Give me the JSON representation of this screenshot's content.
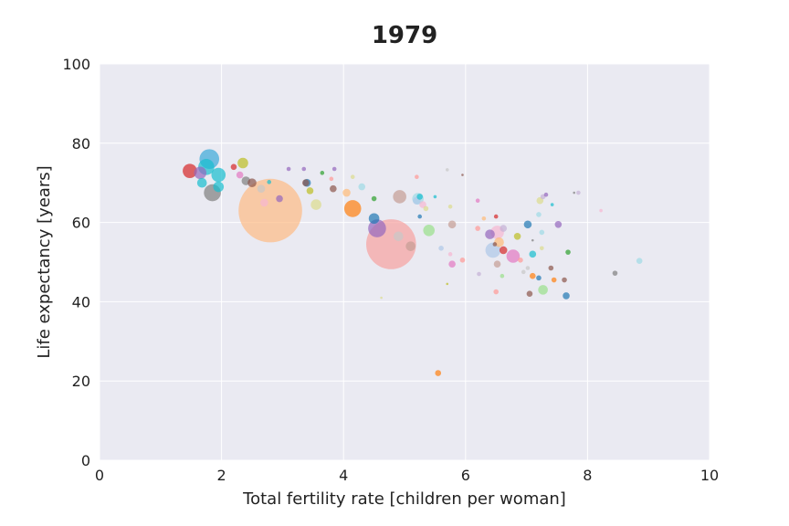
{
  "chart_data": {
    "type": "scatter",
    "title": "1979",
    "xlabel": "Total fertility rate [children per woman]",
    "ylabel": "Life expectancy [years]",
    "xlim": [
      0,
      10
    ],
    "ylim": [
      0,
      100
    ],
    "xticks": [
      "0",
      "2",
      "4",
      "6",
      "8",
      "10"
    ],
    "yticks": [
      "0",
      "20",
      "40",
      "60",
      "80",
      "100"
    ],
    "grid": true,
    "background": "#EAEAF2",
    "grid_color": "#FFFFFF",
    "points": [
      {
        "x": 2.8,
        "y": 63,
        "size": 68,
        "color": "#FDBB84"
      },
      {
        "x": 4.78,
        "y": 54.5,
        "size": 53,
        "color": "#F7A1A0"
      },
      {
        "x": 1.8,
        "y": 76,
        "size": 20,
        "color": "#3AA8D8"
      },
      {
        "x": 1.75,
        "y": 74,
        "size": 16,
        "color": "#17BECF"
      },
      {
        "x": 1.48,
        "y": 73,
        "size": 14,
        "color": "#D62728"
      },
      {
        "x": 1.65,
        "y": 72.5,
        "size": 12,
        "color": "#9467BD"
      },
      {
        "x": 1.95,
        "y": 72,
        "size": 14,
        "color": "#17BECF"
      },
      {
        "x": 1.68,
        "y": 70,
        "size": 9,
        "color": "#17BECF"
      },
      {
        "x": 1.85,
        "y": 67.5,
        "size": 17,
        "color": "#7F7F7F"
      },
      {
        "x": 1.95,
        "y": 69,
        "size": 10,
        "color": "#17BECF"
      },
      {
        "x": 2.35,
        "y": 75,
        "size": 10,
        "color": "#BCBD22"
      },
      {
        "x": 2.4,
        "y": 70.5,
        "size": 8,
        "color": "#7F7F7F"
      },
      {
        "x": 2.5,
        "y": 70,
        "size": 8,
        "color": "#8C564B"
      },
      {
        "x": 2.3,
        "y": 72,
        "size": 6,
        "color": "#E377C2"
      },
      {
        "x": 2.2,
        "y": 74,
        "size": 5,
        "color": "#D62728"
      },
      {
        "x": 2.65,
        "y": 68.5,
        "size": 7,
        "color": "#C7C7C7"
      },
      {
        "x": 2.7,
        "y": 65,
        "size": 7,
        "color": "#F7B6D2"
      },
      {
        "x": 2.95,
        "y": 66,
        "size": 6,
        "color": "#9467BD"
      },
      {
        "x": 2.78,
        "y": 70.2,
        "size": 3,
        "color": "#17BECF"
      },
      {
        "x": 3.4,
        "y": 70,
        "size": 7,
        "color": "#1F77B4"
      },
      {
        "x": 3.38,
        "y": 70,
        "size": 6,
        "color": "#8C564B"
      },
      {
        "x": 3.45,
        "y": 68,
        "size": 6,
        "color": "#BCBD22"
      },
      {
        "x": 3.55,
        "y": 64.5,
        "size": 10,
        "color": "#DBDB8D"
      },
      {
        "x": 3.1,
        "y": 73.5,
        "size": 3,
        "color": "#9467BD"
      },
      {
        "x": 3.35,
        "y": 73.5,
        "size": 3,
        "color": "#9467BD"
      },
      {
        "x": 3.65,
        "y": 72.5,
        "size": 3,
        "color": "#2CA02C"
      },
      {
        "x": 3.85,
        "y": 73.5,
        "size": 3,
        "color": "#9467BD"
      },
      {
        "x": 3.83,
        "y": 68.5,
        "size": 6,
        "color": "#8C564B"
      },
      {
        "x": 3.8,
        "y": 71,
        "size": 3,
        "color": "#FF9896"
      },
      {
        "x": 4.15,
        "y": 63.5,
        "size": 17,
        "color": "#FF7F0E"
      },
      {
        "x": 4.05,
        "y": 67.5,
        "size": 7,
        "color": "#FFBB78"
      },
      {
        "x": 4.15,
        "y": 71.5,
        "size": 3,
        "color": "#DBDB8D"
      },
      {
        "x": 4.3,
        "y": 69,
        "size": 6,
        "color": "#9EDAE5"
      },
      {
        "x": 4.5,
        "y": 66,
        "size": 4,
        "color": "#2CA02C"
      },
      {
        "x": 4.55,
        "y": 58.5,
        "size": 18,
        "color": "#9467BD"
      },
      {
        "x": 4.5,
        "y": 61,
        "size": 10,
        "color": "#1F77B4"
      },
      {
        "x": 4.9,
        "y": 56.5,
        "size": 9,
        "color": "#C7C7C7"
      },
      {
        "x": 4.92,
        "y": 66.5,
        "size": 13,
        "color": "#C49C94"
      },
      {
        "x": 5.1,
        "y": 54,
        "size": 9,
        "color": "#C49C94"
      },
      {
        "x": 5.22,
        "y": 66,
        "size": 11,
        "color": "#9EDAE5"
      },
      {
        "x": 5.2,
        "y": 65.5,
        "size": 7,
        "color": "#AEC7E8"
      },
      {
        "x": 5.25,
        "y": 66.5,
        "size": 5,
        "color": "#17BECF"
      },
      {
        "x": 5.3,
        "y": 64.5,
        "size": 6,
        "color": "#F7B6D2"
      },
      {
        "x": 5.25,
        "y": 61.5,
        "size": 3,
        "color": "#1F77B4"
      },
      {
        "x": 5.4,
        "y": 58,
        "size": 11,
        "color": "#98DF8A"
      },
      {
        "x": 5.35,
        "y": 63.5,
        "size": 4,
        "color": "#DBDB8D"
      },
      {
        "x": 5.5,
        "y": 66.5,
        "size": 2,
        "color": "#17BECF"
      },
      {
        "x": 5.2,
        "y": 71.5,
        "size": 3,
        "color": "#FF9896"
      },
      {
        "x": 5.6,
        "y": 53.5,
        "size": 4,
        "color": "#AEC7E8"
      },
      {
        "x": 5.78,
        "y": 59.5,
        "size": 7,
        "color": "#C49C94"
      },
      {
        "x": 5.75,
        "y": 52,
        "size": 3,
        "color": "#F7B6D2"
      },
      {
        "x": 5.78,
        "y": 49.5,
        "size": 6,
        "color": "#E377C2"
      },
      {
        "x": 5.75,
        "y": 64,
        "size": 3,
        "color": "#DBDB8D"
      },
      {
        "x": 5.7,
        "y": 73.3,
        "size": 2,
        "color": "#C7C7C7"
      },
      {
        "x": 5.95,
        "y": 72,
        "size": 1,
        "color": "#8C564B"
      },
      {
        "x": 5.95,
        "y": 50.5,
        "size": 4,
        "color": "#FF9896"
      },
      {
        "x": 5.55,
        "y": 22,
        "size": 5,
        "color": "#FF7F0E"
      },
      {
        "x": 5.7,
        "y": 44.5,
        "size": 1,
        "color": "#BCBD22"
      },
      {
        "x": 4.62,
        "y": 41,
        "size": 1,
        "color": "#DBDB8D"
      },
      {
        "x": 6.2,
        "y": 65.5,
        "size": 3,
        "color": "#E377C2"
      },
      {
        "x": 6.2,
        "y": 58.5,
        "size": 4,
        "color": "#FF9896"
      },
      {
        "x": 6.3,
        "y": 61,
        "size": 3,
        "color": "#FFBB78"
      },
      {
        "x": 6.22,
        "y": 47,
        "size": 3,
        "color": "#C5B0D5"
      },
      {
        "x": 6.4,
        "y": 57,
        "size": 9,
        "color": "#9467BD"
      },
      {
        "x": 6.45,
        "y": 53,
        "size": 15,
        "color": "#AEC7E8"
      },
      {
        "x": 6.52,
        "y": 57.5,
        "size": 13,
        "color": "#F7B6D2"
      },
      {
        "x": 6.55,
        "y": 55,
        "size": 9,
        "color": "#FFBB78"
      },
      {
        "x": 6.52,
        "y": 49.5,
        "size": 6,
        "color": "#C49C94"
      },
      {
        "x": 6.5,
        "y": 42.5,
        "size": 4,
        "color": "#FF9896"
      },
      {
        "x": 6.5,
        "y": 61.5,
        "size": 3,
        "color": "#D62728"
      },
      {
        "x": 6.48,
        "y": 54.5,
        "size": 3,
        "color": "#8C564B"
      },
      {
        "x": 6.62,
        "y": 53,
        "size": 7,
        "color": "#D62728"
      },
      {
        "x": 6.62,
        "y": 58.5,
        "size": 6,
        "color": "#C5B0D5"
      },
      {
        "x": 6.6,
        "y": 46.5,
        "size": 3,
        "color": "#98DF8A"
      },
      {
        "x": 6.78,
        "y": 51.5,
        "size": 13,
        "color": "#E377C2"
      },
      {
        "x": 6.85,
        "y": 56.5,
        "size": 6,
        "color": "#BCBD22"
      },
      {
        "x": 6.9,
        "y": 50.5,
        "size": 4,
        "color": "#FF9896"
      },
      {
        "x": 6.95,
        "y": 47.5,
        "size": 3,
        "color": "#C7C7C7"
      },
      {
        "x": 7.02,
        "y": 59.5,
        "size": 7,
        "color": "#1F77B4"
      },
      {
        "x": 7.05,
        "y": 42,
        "size": 5,
        "color": "#8C564B"
      },
      {
        "x": 7.1,
        "y": 52,
        "size": 6,
        "color": "#17BECF"
      },
      {
        "x": 7.02,
        "y": 48.5,
        "size": 3,
        "color": "#C7C7C7"
      },
      {
        "x": 7.1,
        "y": 46.5,
        "size": 5,
        "color": "#FF7F0E"
      },
      {
        "x": 7.1,
        "y": 55.5,
        "size": 1,
        "color": "#7F7F7F"
      },
      {
        "x": 7.2,
        "y": 62,
        "size": 4,
        "color": "#9EDAE5"
      },
      {
        "x": 7.22,
        "y": 65.5,
        "size": 6,
        "color": "#DBDB8D"
      },
      {
        "x": 7.27,
        "y": 66.5,
        "size": 4,
        "color": "#C5B0D5"
      },
      {
        "x": 7.32,
        "y": 67,
        "size": 3,
        "color": "#9467BD"
      },
      {
        "x": 7.25,
        "y": 57.5,
        "size": 4,
        "color": "#9EDAE5"
      },
      {
        "x": 7.25,
        "y": 53.5,
        "size": 3,
        "color": "#DBDB8D"
      },
      {
        "x": 7.2,
        "y": 46,
        "size": 4,
        "color": "#1F77B4"
      },
      {
        "x": 7.27,
        "y": 43,
        "size": 9,
        "color": "#98DF8A"
      },
      {
        "x": 7.4,
        "y": 48.5,
        "size": 4,
        "color": "#8C564B"
      },
      {
        "x": 7.42,
        "y": 64.5,
        "size": 2,
        "color": "#17BECF"
      },
      {
        "x": 7.45,
        "y": 45.5,
        "size": 4,
        "color": "#FF7F0E"
      },
      {
        "x": 7.52,
        "y": 59.5,
        "size": 6,
        "color": "#9467BD"
      },
      {
        "x": 7.62,
        "y": 45.5,
        "size": 4,
        "color": "#8C564B"
      },
      {
        "x": 7.65,
        "y": 41.5,
        "size": 6,
        "color": "#1F77B4"
      },
      {
        "x": 7.68,
        "y": 52.5,
        "size": 4,
        "color": "#2CA02C"
      },
      {
        "x": 7.78,
        "y": 67.5,
        "size": 1,
        "color": "#7F7F7F"
      },
      {
        "x": 7.85,
        "y": 67.5,
        "size": 3,
        "color": "#C5B0D5"
      },
      {
        "x": 8.22,
        "y": 63,
        "size": 2,
        "color": "#F7B6D2"
      },
      {
        "x": 8.45,
        "y": 47.2,
        "size": 4,
        "color": "#7F7F7F"
      },
      {
        "x": 8.85,
        "y": 50.3,
        "size": 5,
        "color": "#9EDAE5"
      }
    ]
  }
}
